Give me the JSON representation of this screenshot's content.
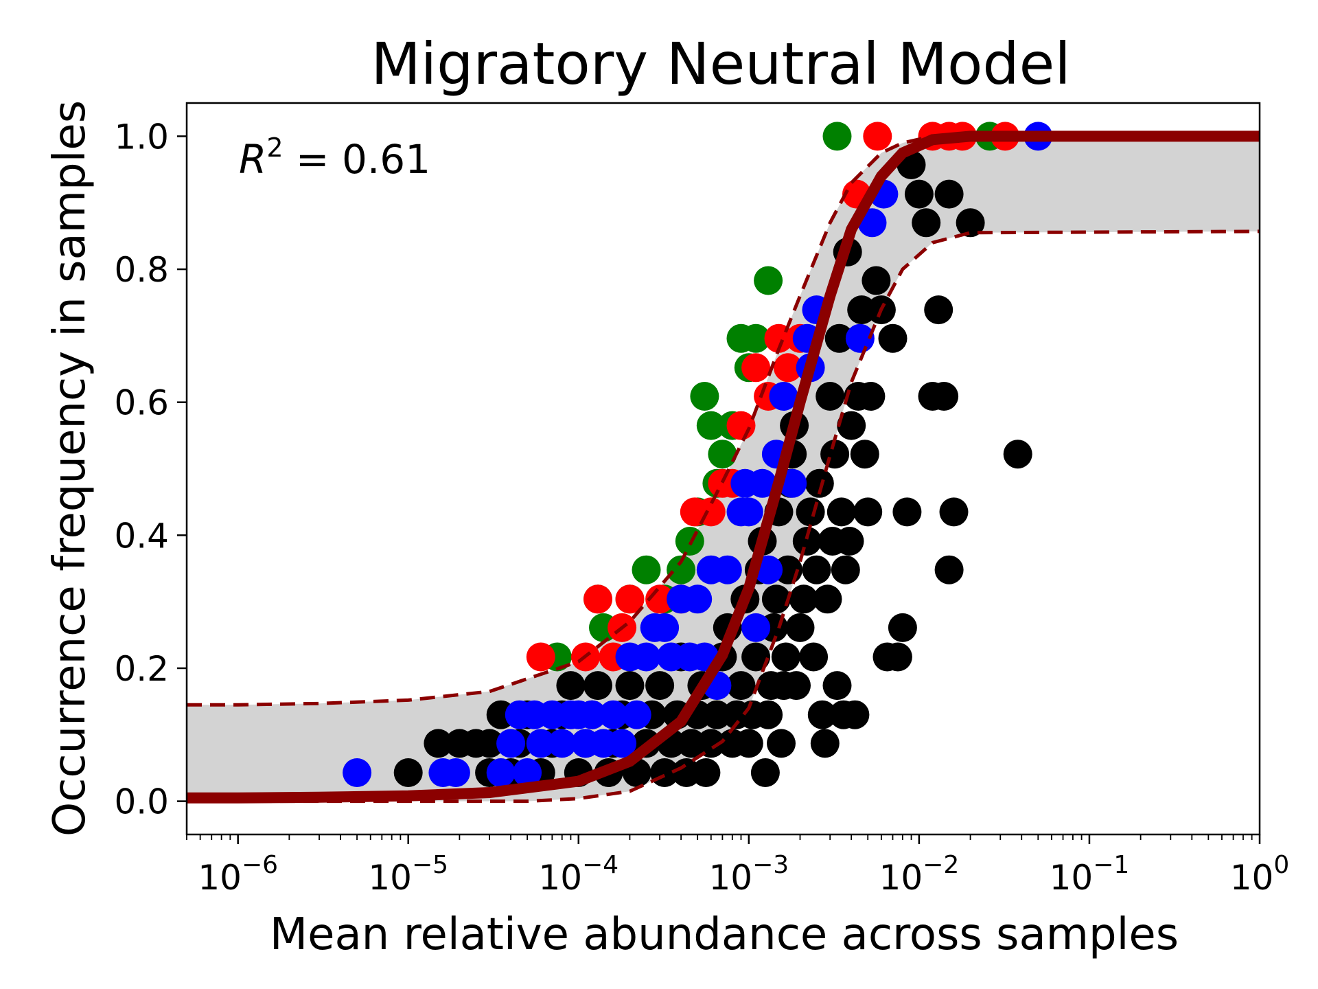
{
  "chart_data": {
    "type": "scatter",
    "title": "Migratory Neutral Model",
    "xlabel": "Mean relative abundance across samples",
    "ylabel": "Occurrence frequency in samples",
    "x_scale": "log",
    "xlim": [
      5e-07,
      1
    ],
    "ylim": [
      -0.05,
      1.05
    ],
    "x_ticks": [
      {
        "value": 1e-06,
        "base": "10",
        "exp": "−6"
      },
      {
        "value": 1e-05,
        "base": "10",
        "exp": "−5"
      },
      {
        "value": 0.0001,
        "base": "10",
        "exp": "−4"
      },
      {
        "value": 0.001,
        "base": "10",
        "exp": "−3"
      },
      {
        "value": 0.01,
        "base": "10",
        "exp": "−2"
      },
      {
        "value": 0.1,
        "base": "10",
        "exp": "−1"
      },
      {
        "value": 1,
        "base": "10",
        "exp": "0"
      }
    ],
    "y_ticks": [
      {
        "value": 0.0,
        "label": "0.0"
      },
      {
        "value": 0.2,
        "label": "0.2"
      },
      {
        "value": 0.4,
        "label": "0.4"
      },
      {
        "value": 0.6,
        "label": "0.6"
      },
      {
        "value": 0.8,
        "label": "0.8"
      },
      {
        "value": 1.0,
        "label": "1.0"
      }
    ],
    "grid": false,
    "annotation": {
      "r": "R",
      "sup": "2",
      "rest": " = 0.61"
    },
    "model": {
      "fit": [
        [
          5e-07,
          0.005
        ],
        [
          1e-06,
          0.005
        ],
        [
          3e-06,
          0.006
        ],
        [
          1e-05,
          0.008
        ],
        [
          3e-05,
          0.013
        ],
        [
          0.0001,
          0.03
        ],
        [
          0.0002,
          0.06
        ],
        [
          0.0004,
          0.12
        ],
        [
          0.0007,
          0.22
        ],
        [
          0.001,
          0.32
        ],
        [
          0.0015,
          0.48
        ],
        [
          0.002,
          0.6
        ],
        [
          0.003,
          0.76
        ],
        [
          0.004,
          0.86
        ],
        [
          0.006,
          0.94
        ],
        [
          0.008,
          0.975
        ],
        [
          0.012,
          0.995
        ],
        [
          0.02,
          1.0
        ],
        [
          1,
          1.0
        ]
      ],
      "upper": [
        [
          5e-07,
          0.145
        ],
        [
          1e-06,
          0.145
        ],
        [
          3e-06,
          0.147
        ],
        [
          1e-05,
          0.152
        ],
        [
          3e-05,
          0.165
        ],
        [
          0.0001,
          0.21
        ],
        [
          0.0002,
          0.27
        ],
        [
          0.0004,
          0.36
        ],
        [
          0.0007,
          0.48
        ],
        [
          0.001,
          0.56
        ],
        [
          0.0015,
          0.68
        ],
        [
          0.002,
          0.76
        ],
        [
          0.003,
          0.87
        ],
        [
          0.004,
          0.93
        ],
        [
          0.006,
          0.975
        ],
        [
          0.008,
          0.99
        ],
        [
          0.012,
          1.0
        ],
        [
          1,
          1.0
        ]
      ],
      "lower": [
        [
          5e-07,
          0.0
        ],
        [
          5e-05,
          0.0
        ],
        [
          0.0001,
          0.004
        ],
        [
          0.0002,
          0.015
        ],
        [
          0.0004,
          0.05
        ],
        [
          0.0007,
          0.09
        ],
        [
          0.001,
          0.14
        ],
        [
          0.0015,
          0.26
        ],
        [
          0.002,
          0.36
        ],
        [
          0.003,
          0.52
        ],
        [
          0.004,
          0.63
        ],
        [
          0.006,
          0.74
        ],
        [
          0.008,
          0.8
        ],
        [
          0.012,
          0.84
        ],
        [
          0.02,
          0.855
        ],
        [
          1,
          0.857
        ]
      ]
    },
    "series": [
      {
        "color": "#000000",
        "points": [
          [
            1e-05,
            0.043
          ],
          [
            1.5e-05,
            0.087
          ],
          [
            2e-05,
            0.087
          ],
          [
            2.5e-05,
            0.087
          ],
          [
            3e-05,
            0.043
          ],
          [
            3e-05,
            0.087
          ],
          [
            3.5e-05,
            0.13
          ],
          [
            4e-05,
            0.043
          ],
          [
            4.5e-05,
            0.087
          ],
          [
            5e-05,
            0.13
          ],
          [
            6e-05,
            0.043
          ],
          [
            7e-05,
            0.087
          ],
          [
            8e-05,
            0.13
          ],
          [
            9e-05,
            0.174
          ],
          [
            0.0001,
            0.043
          ],
          [
            0.00011,
            0.087
          ],
          [
            0.00012,
            0.13
          ],
          [
            0.00013,
            0.174
          ],
          [
            0.00015,
            0.043
          ],
          [
            0.00016,
            0.087
          ],
          [
            0.00018,
            0.13
          ],
          [
            0.0002,
            0.174
          ],
          [
            0.00022,
            0.043
          ],
          [
            0.00025,
            0.087
          ],
          [
            0.00027,
            0.13
          ],
          [
            0.0003,
            0.174
          ],
          [
            0.00032,
            0.043
          ],
          [
            0.00035,
            0.087
          ],
          [
            0.00038,
            0.13
          ],
          [
            0.0004,
            0.217
          ],
          [
            0.00043,
            0.043
          ],
          [
            0.00046,
            0.087
          ],
          [
            0.0005,
            0.13
          ],
          [
            0.00053,
            0.174
          ],
          [
            0.00056,
            0.043
          ],
          [
            0.0006,
            0.087
          ],
          [
            0.00065,
            0.13
          ],
          [
            0.0007,
            0.217
          ],
          [
            0.00075,
            0.261
          ],
          [
            0.0008,
            0.087
          ],
          [
            0.00085,
            0.13
          ],
          [
            0.0009,
            0.174
          ],
          [
            0.00095,
            0.304
          ],
          [
            0.001,
            0.087
          ],
          [
            0.00105,
            0.13
          ],
          [
            0.0011,
            0.217
          ],
          [
            0.00115,
            0.348
          ],
          [
            0.0012,
            0.391
          ],
          [
            0.00125,
            0.043
          ],
          [
            0.0013,
            0.13
          ],
          [
            0.00135,
            0.174
          ],
          [
            0.0014,
            0.261
          ],
          [
            0.00145,
            0.304
          ],
          [
            0.0015,
            0.435
          ],
          [
            0.00155,
            0.087
          ],
          [
            0.0016,
            0.174
          ],
          [
            0.00165,
            0.217
          ],
          [
            0.0017,
            0.348
          ],
          [
            0.00175,
            0.478
          ],
          [
            0.0018,
            0.522
          ],
          [
            0.00185,
            0.565
          ],
          [
            0.0019,
            0.174
          ],
          [
            0.002,
            0.261
          ],
          [
            0.0021,
            0.304
          ],
          [
            0.0022,
            0.391
          ],
          [
            0.0023,
            0.435
          ],
          [
            0.0024,
            0.217
          ],
          [
            0.0025,
            0.348
          ],
          [
            0.0026,
            0.478
          ],
          [
            0.0027,
            0.13
          ],
          [
            0.0028,
            0.087
          ],
          [
            0.0029,
            0.304
          ],
          [
            0.003,
            0.609
          ],
          [
            0.0031,
            0.391
          ],
          [
            0.0032,
            0.522
          ],
          [
            0.0033,
            0.174
          ],
          [
            0.0034,
            0.696
          ],
          [
            0.0035,
            0.435
          ],
          [
            0.0036,
            0.13
          ],
          [
            0.0037,
            0.348
          ],
          [
            0.0038,
            0.826
          ],
          [
            0.0039,
            0.391
          ],
          [
            0.004,
            0.565
          ],
          [
            0.0042,
            0.13
          ],
          [
            0.0044,
            0.609
          ],
          [
            0.0046,
            0.739
          ],
          [
            0.0048,
            0.522
          ],
          [
            0.005,
            0.435
          ],
          [
            0.0052,
            0.609
          ],
          [
            0.0056,
            0.783
          ],
          [
            0.006,
            0.739
          ],
          [
            0.0065,
            0.217
          ],
          [
            0.007,
            0.696
          ],
          [
            0.0075,
            0.217
          ],
          [
            0.008,
            0.261
          ],
          [
            0.0085,
            0.435
          ],
          [
            0.009,
            0.957
          ],
          [
            0.01,
            0.913
          ],
          [
            0.011,
            0.87
          ],
          [
            0.012,
            0.609
          ],
          [
            0.013,
            0.739
          ],
          [
            0.014,
            0.609
          ],
          [
            0.015,
            0.913
          ],
          [
            0.015,
            0.348
          ],
          [
            0.016,
            0.435
          ],
          [
            0.02,
            0.87
          ],
          [
            0.038,
            0.522
          ]
        ]
      },
      {
        "color": "#008000",
        "points": [
          [
            7.5e-05,
            0.217
          ],
          [
            0.00013,
            0.304
          ],
          [
            0.00014,
            0.261
          ],
          [
            0.0002,
            0.304
          ],
          [
            0.00025,
            0.348
          ],
          [
            0.00032,
            0.304
          ],
          [
            0.0004,
            0.348
          ],
          [
            0.00045,
            0.391
          ],
          [
            0.0005,
            0.435
          ],
          [
            0.00055,
            0.609
          ],
          [
            0.0006,
            0.565
          ],
          [
            0.00065,
            0.478
          ],
          [
            0.0007,
            0.522
          ],
          [
            0.0008,
            0.565
          ],
          [
            0.0009,
            0.696
          ],
          [
            0.001,
            0.652
          ],
          [
            0.0011,
            0.696
          ],
          [
            0.0013,
            0.783
          ],
          [
            0.0033,
            1.0
          ],
          [
            0.026,
            1.0
          ]
        ]
      },
      {
        "color": "#ff0000",
        "points": [
          [
            6e-05,
            0.217
          ],
          [
            0.00011,
            0.217
          ],
          [
            0.00013,
            0.304
          ],
          [
            0.00016,
            0.217
          ],
          [
            0.00018,
            0.261
          ],
          [
            0.0002,
            0.304
          ],
          [
            0.0003,
            0.304
          ],
          [
            0.0004,
            0.304
          ],
          [
            0.00048,
            0.435
          ],
          [
            0.0006,
            0.435
          ],
          [
            0.0007,
            0.478
          ],
          [
            0.0008,
            0.478
          ],
          [
            0.0009,
            0.565
          ],
          [
            0.0011,
            0.652
          ],
          [
            0.0013,
            0.609
          ],
          [
            0.0015,
            0.696
          ],
          [
            0.0017,
            0.652
          ],
          [
            0.002,
            0.696
          ],
          [
            0.0043,
            0.913
          ],
          [
            0.0057,
            1.0
          ],
          [
            0.012,
            1.0
          ],
          [
            0.015,
            1.0
          ],
          [
            0.018,
            1.0
          ],
          [
            0.032,
            1.0
          ]
        ]
      },
      {
        "color": "#0000ff",
        "points": [
          [
            5e-06,
            0.043
          ],
          [
            1.6e-05,
            0.043
          ],
          [
            1.9e-05,
            0.043
          ],
          [
            3.5e-05,
            0.043
          ],
          [
            4e-05,
            0.087
          ],
          [
            4.5e-05,
            0.13
          ],
          [
            5e-05,
            0.043
          ],
          [
            5.5e-05,
            0.13
          ],
          [
            6e-05,
            0.087
          ],
          [
            7e-05,
            0.13
          ],
          [
            8e-05,
            0.087
          ],
          [
            9e-05,
            0.13
          ],
          [
            0.0001,
            0.13
          ],
          [
            0.00011,
            0.087
          ],
          [
            0.00012,
            0.13
          ],
          [
            0.00014,
            0.087
          ],
          [
            0.00016,
            0.13
          ],
          [
            0.00018,
            0.087
          ],
          [
            0.0002,
            0.217
          ],
          [
            0.00022,
            0.13
          ],
          [
            0.00025,
            0.217
          ],
          [
            0.00028,
            0.261
          ],
          [
            0.00032,
            0.261
          ],
          [
            0.00035,
            0.217
          ],
          [
            0.0004,
            0.304
          ],
          [
            0.00045,
            0.217
          ],
          [
            0.0005,
            0.304
          ],
          [
            0.00055,
            0.217
          ],
          [
            0.0006,
            0.348
          ],
          [
            0.00065,
            0.174
          ],
          [
            0.00075,
            0.348
          ],
          [
            0.0009,
            0.435
          ],
          [
            0.00095,
            0.478
          ],
          [
            0.001,
            0.435
          ],
          [
            0.0011,
            0.261
          ],
          [
            0.0012,
            0.478
          ],
          [
            0.0013,
            0.348
          ],
          [
            0.00145,
            0.522
          ],
          [
            0.0016,
            0.609
          ],
          [
            0.0018,
            0.478
          ],
          [
            0.0022,
            0.696
          ],
          [
            0.0023,
            0.652
          ],
          [
            0.0025,
            0.739
          ],
          [
            0.0045,
            0.696
          ],
          [
            0.0053,
            0.87
          ],
          [
            0.0062,
            0.913
          ],
          [
            0.05,
            1.0
          ]
        ]
      }
    ]
  }
}
